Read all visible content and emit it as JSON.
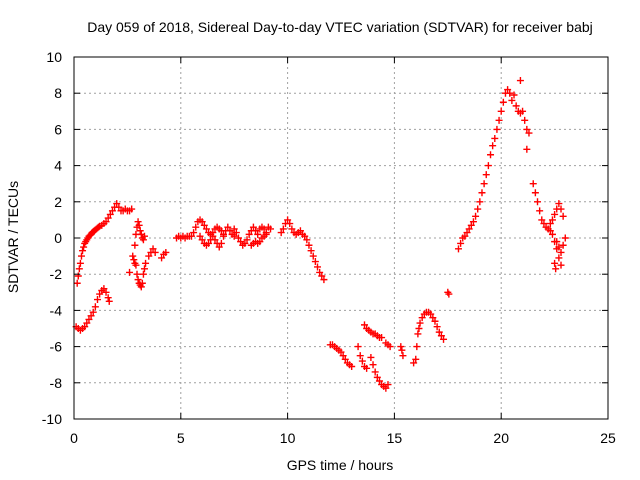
{
  "chart_data": {
    "type": "scatter",
    "title": "Day 059 of 2018, Sidereal Day-to-day VTEC variation (SDTVAR) for receiver babj",
    "xlabel": "GPS time / hours",
    "ylabel": "SDTVAR / TECUs",
    "xlim": [
      0,
      25
    ],
    "ylim": [
      -10,
      10
    ],
    "xticks": [
      "0",
      "5",
      "10",
      "15",
      "20",
      "25"
    ],
    "yticks": [
      "-10",
      "-8",
      "-6",
      "-4",
      "-2",
      "0",
      "2",
      "4",
      "6",
      "8",
      "10"
    ],
    "grid": true,
    "marker": "plus",
    "color": "#ff0000",
    "series": [
      {
        "name": "babj",
        "points": [
          [
            0.15,
            -2.5
          ],
          [
            0.2,
            -2.1
          ],
          [
            0.25,
            -1.7
          ],
          [
            0.3,
            -1.4
          ],
          [
            0.35,
            -1.0
          ],
          [
            0.4,
            -0.7
          ],
          [
            0.45,
            -0.5
          ],
          [
            0.5,
            -0.3
          ],
          [
            0.55,
            -0.2
          ],
          [
            0.6,
            -0.1
          ],
          [
            0.65,
            0.0
          ],
          [
            0.7,
            0.1
          ],
          [
            0.75,
            0.15
          ],
          [
            0.8,
            0.2
          ],
          [
            0.85,
            0.3
          ],
          [
            0.9,
            0.35
          ],
          [
            0.95,
            0.4
          ],
          [
            1.0,
            0.45
          ],
          [
            1.05,
            0.5
          ],
          [
            1.1,
            0.55
          ],
          [
            1.15,
            0.6
          ],
          [
            1.2,
            0.65
          ],
          [
            1.3,
            0.7
          ],
          [
            1.4,
            0.8
          ],
          [
            1.5,
            0.9
          ],
          [
            1.6,
            1.1
          ],
          [
            1.7,
            1.3
          ],
          [
            1.8,
            1.5
          ],
          [
            1.9,
            1.7
          ],
          [
            2.0,
            1.9
          ],
          [
            2.1,
            1.7
          ],
          [
            2.2,
            1.5
          ],
          [
            2.3,
            1.5
          ],
          [
            2.4,
            1.6
          ],
          [
            2.5,
            1.5
          ],
          [
            2.6,
            1.5
          ],
          [
            2.7,
            1.6
          ],
          [
            0.1,
            -4.9
          ],
          [
            0.2,
            -5.0
          ],
          [
            0.3,
            -5.1
          ],
          [
            0.4,
            -5.0
          ],
          [
            0.5,
            -4.9
          ],
          [
            0.6,
            -4.7
          ],
          [
            0.7,
            -4.5
          ],
          [
            0.8,
            -4.3
          ],
          [
            0.9,
            -4.1
          ],
          [
            1.0,
            -3.8
          ],
          [
            1.1,
            -3.4
          ],
          [
            1.2,
            -3.1
          ],
          [
            1.3,
            -2.9
          ],
          [
            1.4,
            -2.8
          ],
          [
            1.5,
            -3.0
          ],
          [
            1.6,
            -3.3
          ],
          [
            1.65,
            -3.5
          ],
          [
            2.6,
            -1.9
          ],
          [
            2.75,
            -1.0
          ],
          [
            2.8,
            -1.2
          ],
          [
            2.85,
            -0.4
          ],
          [
            2.9,
            0.2
          ],
          [
            2.95,
            0.6
          ],
          [
            3.0,
            0.9
          ],
          [
            3.05,
            0.7
          ],
          [
            3.1,
            0.4
          ],
          [
            3.15,
            0.2
          ],
          [
            3.2,
            0.0
          ],
          [
            3.25,
            -0.1
          ],
          [
            3.3,
            0.1
          ],
          [
            2.85,
            -1.4
          ],
          [
            2.9,
            -1.5
          ],
          [
            2.95,
            -2.0
          ],
          [
            3.0,
            -2.3
          ],
          [
            3.05,
            -2.5
          ],
          [
            3.1,
            -2.6
          ],
          [
            3.15,
            -2.7
          ],
          [
            3.2,
            -2.5
          ],
          [
            3.25,
            -2.0
          ],
          [
            3.3,
            -1.7
          ],
          [
            3.35,
            -1.4
          ],
          [
            3.5,
            -1.0
          ],
          [
            3.6,
            -0.8
          ],
          [
            3.7,
            -0.6
          ],
          [
            3.8,
            -0.8
          ],
          [
            4.1,
            -1.1
          ],
          [
            4.2,
            -0.9
          ],
          [
            4.3,
            -0.8
          ],
          [
            4.8,
            0.0
          ],
          [
            4.9,
            0.1
          ],
          [
            5.0,
            0.0
          ],
          [
            5.1,
            0.1
          ],
          [
            5.2,
            0.0
          ],
          [
            5.3,
            0.1
          ],
          [
            5.4,
            0.1
          ],
          [
            5.5,
            0.1
          ],
          [
            5.6,
            0.3
          ],
          [
            5.7,
            0.6
          ],
          [
            5.8,
            0.9
          ],
          [
            5.9,
            1.0
          ],
          [
            6.0,
            0.9
          ],
          [
            6.1,
            0.7
          ],
          [
            6.2,
            0.5
          ],
          [
            6.3,
            0.3
          ],
          [
            6.4,
            0.2
          ],
          [
            6.5,
            0.1
          ],
          [
            6.6,
            -0.1
          ],
          [
            6.7,
            -0.3
          ],
          [
            6.8,
            -0.5
          ],
          [
            6.9,
            -0.3
          ],
          [
            7.0,
            0.1
          ],
          [
            7.1,
            0.4
          ],
          [
            7.2,
            0.6
          ],
          [
            7.3,
            0.4
          ],
          [
            7.4,
            0.2
          ],
          [
            7.5,
            0.1
          ],
          [
            5.9,
            0.1
          ],
          [
            6.0,
            -0.1
          ],
          [
            6.1,
            -0.3
          ],
          [
            6.2,
            -0.4
          ],
          [
            6.3,
            -0.3
          ],
          [
            6.4,
            -0.1
          ],
          [
            6.5,
            0.3
          ],
          [
            6.6,
            0.5
          ],
          [
            6.7,
            0.6
          ],
          [
            6.8,
            0.5
          ],
          [
            6.9,
            0.4
          ],
          [
            7.0,
            0.2
          ],
          [
            7.5,
            0.5
          ],
          [
            7.6,
            0.3
          ],
          [
            7.7,
            0.0
          ],
          [
            7.8,
            -0.2
          ],
          [
            7.9,
            -0.4
          ],
          [
            8.0,
            -0.3
          ],
          [
            8.1,
            -0.1
          ],
          [
            8.2,
            0.2
          ],
          [
            8.3,
            0.4
          ],
          [
            8.4,
            0.6
          ],
          [
            8.5,
            0.4
          ],
          [
            8.6,
            0.2
          ],
          [
            8.7,
            0.5
          ],
          [
            8.8,
            0.6
          ],
          [
            8.9,
            0.5
          ],
          [
            9.0,
            0.3
          ],
          [
            9.1,
            0.6
          ],
          [
            9.2,
            0.5
          ],
          [
            8.3,
            -0.4
          ],
          [
            8.4,
            -0.3
          ],
          [
            8.5,
            -0.2
          ],
          [
            8.6,
            -0.3
          ],
          [
            8.7,
            -0.2
          ],
          [
            8.8,
            0.0
          ],
          [
            8.9,
            0.1
          ],
          [
            9.0,
            0.2
          ],
          [
            9.7,
            0.3
          ],
          [
            9.8,
            0.5
          ],
          [
            9.9,
            0.8
          ],
          [
            10.0,
            1.0
          ],
          [
            10.1,
            0.8
          ],
          [
            10.2,
            0.5
          ],
          [
            10.3,
            0.3
          ],
          [
            10.4,
            0.2
          ],
          [
            10.5,
            0.3
          ],
          [
            10.6,
            0.4
          ],
          [
            10.7,
            0.2
          ],
          [
            10.8,
            0.1
          ],
          [
            10.9,
            -0.1
          ],
          [
            11.0,
            -0.4
          ],
          [
            11.1,
            -0.7
          ],
          [
            11.2,
            -1.0
          ],
          [
            11.3,
            -1.3
          ],
          [
            11.4,
            -1.6
          ],
          [
            11.5,
            -1.9
          ],
          [
            11.6,
            -2.1
          ],
          [
            11.7,
            -2.3
          ],
          [
            12.0,
            -5.9
          ],
          [
            12.1,
            -5.9
          ],
          [
            12.2,
            -6.0
          ],
          [
            12.3,
            -6.1
          ],
          [
            12.4,
            -6.2
          ],
          [
            12.5,
            -6.3
          ],
          [
            12.6,
            -6.5
          ],
          [
            12.7,
            -6.7
          ],
          [
            12.8,
            -6.9
          ],
          [
            12.9,
            -7.0
          ],
          [
            13.0,
            -7.1
          ],
          [
            13.3,
            -6.0
          ],
          [
            13.4,
            -6.5
          ],
          [
            13.5,
            -6.8
          ],
          [
            13.6,
            -7.1
          ],
          [
            13.7,
            -7.2
          ],
          [
            13.6,
            -4.8
          ],
          [
            13.7,
            -5.0
          ],
          [
            13.8,
            -5.1
          ],
          [
            13.9,
            -5.2
          ],
          [
            14.0,
            -5.3
          ],
          [
            14.1,
            -5.3
          ],
          [
            14.2,
            -5.4
          ],
          [
            14.3,
            -5.5
          ],
          [
            14.4,
            -5.5
          ],
          [
            13.9,
            -6.6
          ],
          [
            14.0,
            -7.0
          ],
          [
            14.1,
            -7.4
          ],
          [
            14.2,
            -7.7
          ],
          [
            14.3,
            -7.9
          ],
          [
            14.4,
            -8.1
          ],
          [
            14.5,
            -8.2
          ],
          [
            14.6,
            -8.3
          ],
          [
            14.7,
            -8.1
          ],
          [
            14.6,
            -5.8
          ],
          [
            14.7,
            -5.9
          ],
          [
            14.8,
            -6.0
          ],
          [
            15.3,
            -6.0
          ],
          [
            15.35,
            -6.2
          ],
          [
            15.4,
            -6.5
          ],
          [
            15.9,
            -6.9
          ],
          [
            16.0,
            -6.7
          ],
          [
            16.05,
            -6.0
          ],
          [
            16.1,
            -5.3
          ],
          [
            16.15,
            -5.0
          ],
          [
            16.2,
            -4.7
          ],
          [
            16.3,
            -4.4
          ],
          [
            16.4,
            -4.2
          ],
          [
            16.5,
            -4.1
          ],
          [
            16.6,
            -4.1
          ],
          [
            16.7,
            -4.2
          ],
          [
            16.8,
            -4.4
          ],
          [
            16.9,
            -4.6
          ],
          [
            17.0,
            -4.9
          ],
          [
            17.1,
            -5.2
          ],
          [
            17.2,
            -5.4
          ],
          [
            17.3,
            -5.6
          ],
          [
            17.5,
            -3.0
          ],
          [
            17.55,
            -3.1
          ],
          [
            18.0,
            -0.6
          ],
          [
            18.1,
            -0.3
          ],
          [
            18.2,
            0.0
          ],
          [
            18.3,
            0.1
          ],
          [
            18.4,
            0.3
          ],
          [
            18.5,
            0.5
          ],
          [
            18.6,
            0.7
          ],
          [
            18.7,
            0.9
          ],
          [
            18.8,
            1.2
          ],
          [
            18.9,
            1.6
          ],
          [
            19.0,
            2.0
          ],
          [
            19.1,
            2.5
          ],
          [
            19.2,
            3.0
          ],
          [
            19.3,
            3.5
          ],
          [
            19.4,
            4.0
          ],
          [
            19.5,
            4.6
          ],
          [
            19.6,
            5.1
          ],
          [
            19.7,
            5.5
          ],
          [
            19.8,
            6.0
          ],
          [
            19.9,
            6.5
          ],
          [
            20.0,
            7.0
          ],
          [
            20.1,
            7.5
          ],
          [
            20.2,
            8.0
          ],
          [
            20.3,
            8.2
          ],
          [
            20.4,
            8.0
          ],
          [
            20.5,
            7.6
          ],
          [
            20.6,
            7.9
          ],
          [
            20.7,
            7.3
          ],
          [
            20.8,
            7.0
          ],
          [
            20.9,
            6.9
          ],
          [
            21.0,
            7.0
          ],
          [
            21.1,
            6.5
          ],
          [
            20.9,
            8.7
          ],
          [
            21.2,
            6.0
          ],
          [
            21.3,
            5.8
          ],
          [
            21.2,
            4.9
          ],
          [
            21.5,
            3.0
          ],
          [
            21.6,
            2.5
          ],
          [
            21.7,
            2.0
          ],
          [
            21.8,
            1.5
          ],
          [
            21.9,
            1.0
          ],
          [
            22.0,
            0.8
          ],
          [
            22.1,
            0.6
          ],
          [
            22.2,
            0.5
          ],
          [
            22.3,
            0.4
          ],
          [
            22.4,
            0.2
          ],
          [
            22.5,
            -0.2
          ],
          [
            22.6,
            -0.6
          ],
          [
            22.7,
            -1.1
          ],
          [
            22.8,
            -1.5
          ],
          [
            22.3,
            0.8
          ],
          [
            22.4,
            1.0
          ],
          [
            22.5,
            1.3
          ],
          [
            22.6,
            1.6
          ],
          [
            22.7,
            1.9
          ],
          [
            22.8,
            1.6
          ],
          [
            22.9,
            1.2
          ],
          [
            22.6,
            -0.2
          ],
          [
            22.7,
            -0.5
          ],
          [
            22.8,
            -0.8
          ],
          [
            22.9,
            -0.4
          ],
          [
            23.0,
            0.0
          ],
          [
            22.5,
            -1.4
          ],
          [
            22.55,
            -1.7
          ]
        ]
      }
    ]
  }
}
